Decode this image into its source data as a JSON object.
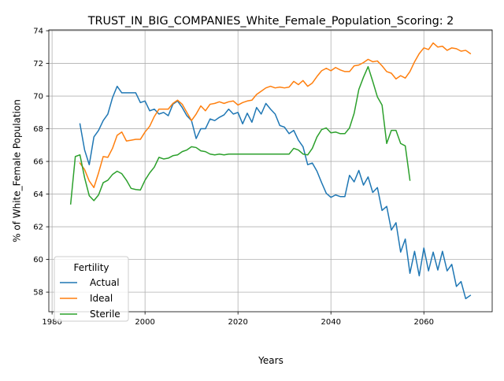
{
  "chart_data": {
    "type": "line",
    "title": "TRUST_IN_BIG_COMPANIES_White_Female_Population_Scoring: 2",
    "xlabel": "Years",
    "ylabel": "% of White_Female Population",
    "xlim": [
      1979.3,
      2074.7
    ],
    "ylim": [
      56.8,
      74.05
    ],
    "xticks": [
      1980,
      2000,
      2020,
      2040,
      2060
    ],
    "yticks": [
      58,
      60,
      62,
      64,
      66,
      68,
      70,
      72,
      74
    ],
    "grid": true,
    "legend": {
      "title": "Fertility",
      "placement": "lower-left"
    },
    "series": [
      {
        "name": "Actual",
        "color": "#1f77b4",
        "x": [
          1986,
          1987,
          1988,
          1989,
          1990,
          1991,
          1992,
          1993,
          1994,
          1995,
          1996,
          1997,
          1998,
          1999,
          2000,
          2001,
          2002,
          2003,
          2004,
          2005,
          2006,
          2007,
          2008,
          2009,
          2010,
          2011,
          2012,
          2013,
          2014,
          2015,
          2016,
          2017,
          2018,
          2019,
          2020,
          2021,
          2022,
          2023,
          2024,
          2025,
          2026,
          2027,
          2028,
          2029,
          2030,
          2031,
          2032,
          2033,
          2034,
          2035,
          2036,
          2037,
          2038,
          2039,
          2040,
          2041,
          2042,
          2043,
          2044,
          2045,
          2046,
          2047,
          2048,
          2049,
          2050,
          2051,
          2052,
          2053,
          2054,
          2055,
          2056,
          2057,
          2058,
          2059,
          2060,
          2061,
          2062,
          2063,
          2064,
          2065,
          2066,
          2067,
          2068,
          2069,
          2070
        ],
        "y": [
          68.3,
          66.7,
          65.8,
          67.5,
          67.9,
          68.5,
          68.9,
          69.9,
          70.6,
          70.2,
          70.2,
          70.2,
          70.2,
          69.6,
          69.7,
          69.1,
          69.2,
          68.9,
          69.0,
          68.8,
          69.5,
          69.7,
          69.3,
          68.8,
          68.5,
          67.4,
          68.0,
          68.0,
          68.6,
          68.5,
          68.7,
          68.85,
          69.2,
          68.9,
          69.0,
          68.3,
          68.95,
          68.4,
          69.3,
          68.9,
          69.55,
          69.2,
          68.9,
          68.2,
          68.1,
          67.7,
          67.9,
          67.3,
          66.9,
          65.8,
          65.9,
          65.4,
          64.7,
          64.05,
          63.8,
          63.95,
          63.85,
          63.85,
          65.15,
          64.75,
          65.45,
          64.55,
          65.05,
          64.1,
          64.4,
          63.0,
          63.25,
          61.8,
          62.25,
          60.45,
          61.25,
          59.15,
          60.5,
          59.0,
          60.7,
          59.3,
          60.45,
          59.35,
          60.5,
          59.3,
          59.7,
          58.35,
          58.65,
          57.6,
          57.8
        ]
      },
      {
        "name": "Ideal",
        "color": "#ff7f0e",
        "x": [
          1986,
          1987,
          1988,
          1989,
          1990,
          1991,
          1992,
          1993,
          1994,
          1995,
          1996,
          1997,
          1998,
          1999,
          2000,
          2001,
          2002,
          2003,
          2004,
          2005,
          2006,
          2007,
          2008,
          2009,
          2010,
          2011,
          2012,
          2013,
          2014,
          2015,
          2016,
          2017,
          2018,
          2019,
          2020,
          2021,
          2022,
          2023,
          2024,
          2025,
          2026,
          2027,
          2028,
          2029,
          2030,
          2031,
          2032,
          2033,
          2034,
          2035,
          2036,
          2037,
          2038,
          2039,
          2040,
          2041,
          2042,
          2043,
          2044,
          2045,
          2046,
          2047,
          2048,
          2049,
          2050,
          2051,
          2052,
          2053,
          2054,
          2055,
          2056,
          2057,
          2058,
          2059,
          2060,
          2061,
          2062,
          2063,
          2064,
          2065,
          2066,
          2067,
          2068,
          2069,
          2070
        ],
        "y": [
          65.9,
          65.5,
          64.8,
          64.4,
          65.3,
          66.3,
          66.25,
          66.8,
          67.6,
          67.8,
          67.25,
          67.3,
          67.35,
          67.35,
          67.8,
          68.15,
          68.75,
          69.2,
          69.2,
          69.2,
          69.55,
          69.75,
          69.5,
          69.0,
          68.5,
          68.9,
          69.4,
          69.1,
          69.5,
          69.55,
          69.65,
          69.55,
          69.65,
          69.7,
          69.45,
          69.6,
          69.7,
          69.75,
          70.1,
          70.3,
          70.5,
          70.6,
          70.5,
          70.55,
          70.5,
          70.55,
          70.9,
          70.7,
          70.95,
          70.6,
          70.8,
          71.2,
          71.55,
          71.7,
          71.55,
          71.75,
          71.6,
          71.5,
          71.5,
          71.85,
          71.9,
          72.05,
          72.25,
          72.1,
          72.15,
          71.85,
          71.5,
          71.4,
          71.05,
          71.25,
          71.1,
          71.5,
          72.1,
          72.6,
          72.95,
          72.85,
          73.25,
          73.0,
          73.05,
          72.8,
          72.95,
          72.9,
          72.75,
          72.8,
          72.6
        ]
      },
      {
        "name": "Sterile",
        "color": "#2ca02c",
        "x": [
          1984,
          1985,
          1986,
          1987,
          1988,
          1989,
          1990,
          1991,
          1992,
          1993,
          1994,
          1995,
          1996,
          1997,
          1998,
          1999,
          2000,
          2001,
          2002,
          2003,
          2004,
          2005,
          2006,
          2007,
          2008,
          2009,
          2010,
          2011,
          2012,
          2013,
          2014,
          2015,
          2016,
          2017,
          2018,
          2019,
          2020,
          2021,
          2022,
          2023,
          2024,
          2025,
          2026,
          2027,
          2028,
          2029,
          2030,
          2031,
          2032,
          2033,
          2034,
          2035,
          2036,
          2037,
          2038,
          2039,
          2040,
          2041,
          2042,
          2043,
          2044,
          2045,
          2046,
          2047,
          2048,
          2049,
          2050,
          2051,
          2052,
          2053,
          2054,
          2055,
          2056,
          2057
        ],
        "y": [
          63.4,
          66.3,
          66.4,
          65.0,
          63.9,
          63.6,
          63.95,
          64.7,
          64.85,
          65.2,
          65.4,
          65.25,
          64.85,
          64.35,
          64.28,
          64.25,
          64.85,
          65.3,
          65.65,
          66.25,
          66.15,
          66.2,
          66.35,
          66.4,
          66.6,
          66.7,
          66.9,
          66.85,
          66.65,
          66.6,
          66.45,
          66.4,
          66.45,
          66.4,
          66.45,
          66.45,
          66.45,
          66.45,
          66.45,
          66.45,
          66.45,
          66.45,
          66.45,
          66.45,
          66.45,
          66.45,
          66.45,
          66.45,
          66.8,
          66.7,
          66.45,
          66.4,
          66.8,
          67.5,
          67.95,
          68.05,
          67.75,
          67.8,
          67.7,
          67.7,
          68.05,
          68.95,
          70.4,
          71.15,
          71.8,
          70.9,
          69.95,
          69.45,
          67.1,
          67.9,
          67.9,
          67.1,
          66.95,
          64.85
        ]
      }
    ]
  }
}
